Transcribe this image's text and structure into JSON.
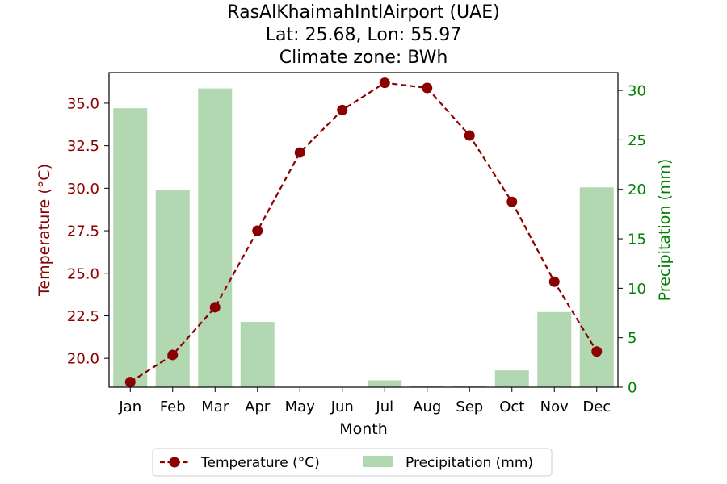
{
  "chart_data": {
    "type": "bar+line",
    "title": [
      "RasAlKhaimahIntlAirport (UAE)",
      "Lat: 25.68, Lon: 55.97",
      "Climate zone: BWh"
    ],
    "categories": [
      "Jan",
      "Feb",
      "Mar",
      "Apr",
      "May",
      "Jun",
      "Jul",
      "Aug",
      "Sep",
      "Oct",
      "Nov",
      "Dec"
    ],
    "xlabel": "Month",
    "series": [
      {
        "name": "Temperature (°C)",
        "kind": "line",
        "axis": "left",
        "color": "#8b0000",
        "values": [
          18.6,
          20.2,
          23.0,
          27.5,
          32.1,
          34.6,
          36.2,
          35.9,
          33.1,
          29.2,
          24.5,
          20.4
        ]
      },
      {
        "name": "Precipitation (mm)",
        "kind": "bar",
        "axis": "right",
        "color": "#b2d8b2",
        "values": [
          28.2,
          19.9,
          30.2,
          6.6,
          0.0,
          0.0,
          0.7,
          0.1,
          0.1,
          1.7,
          7.6,
          20.2
        ]
      }
    ],
    "y_left": {
      "label": "Temperature (°C)",
      "lim": [
        18.3,
        36.8
      ],
      "ticks": [
        "20.0",
        "22.5",
        "25.0",
        "27.5",
        "30.0",
        "32.5",
        "35.0"
      ],
      "color": "#8b0000"
    },
    "y_right": {
      "label": "Precipitation (mm)",
      "lim": [
        0,
        31.8
      ],
      "ticks": [
        "0",
        "5",
        "10",
        "15",
        "20",
        "25",
        "30"
      ],
      "color": "#008000"
    },
    "legend": {
      "placement": "bottom-center",
      "entries": [
        "Temperature (°C)",
        "Precipitation (mm)"
      ]
    },
    "grid": false
  }
}
